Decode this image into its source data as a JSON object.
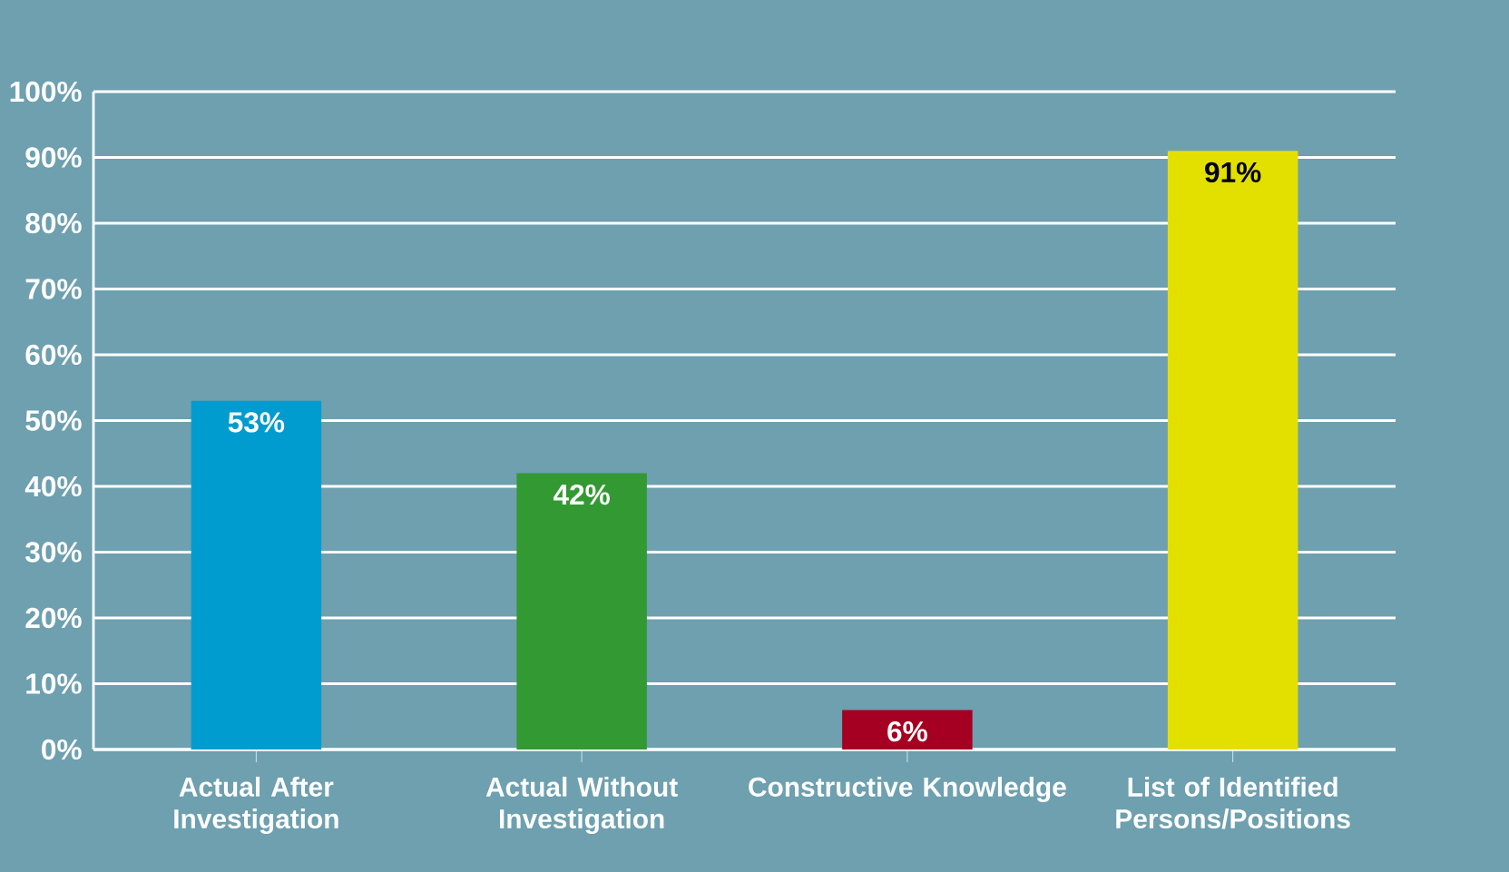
{
  "chart_data": {
    "type": "bar",
    "categories": [
      "Actual After Investigation",
      "Actual Without Investigation",
      "Constructive Knowledge",
      "List of Identified Persons/Positions"
    ],
    "values": [
      53,
      42,
      6,
      91
    ],
    "colors": [
      "#009ccf",
      "#339933",
      "#a50021",
      "#e3e000"
    ],
    "value_labels": [
      "53%",
      "42%",
      "6%",
      "91%"
    ],
    "ylim": [
      0,
      100
    ],
    "yticks": [
      {
        "value": 0,
        "label": "0%"
      },
      {
        "value": 10,
        "label": "10%"
      },
      {
        "value": 20,
        "label": "20%"
      },
      {
        "value": 30,
        "label": "30%"
      },
      {
        "value": 40,
        "label": "40%"
      },
      {
        "value": 50,
        "label": "50%"
      },
      {
        "value": 60,
        "label": "60%"
      },
      {
        "value": 70,
        "label": "70%"
      },
      {
        "value": 80,
        "label": "80%"
      },
      {
        "value": 90,
        "label": "90%"
      },
      {
        "value": 100,
        "label": "100%"
      }
    ],
    "grid": "y"
  }
}
